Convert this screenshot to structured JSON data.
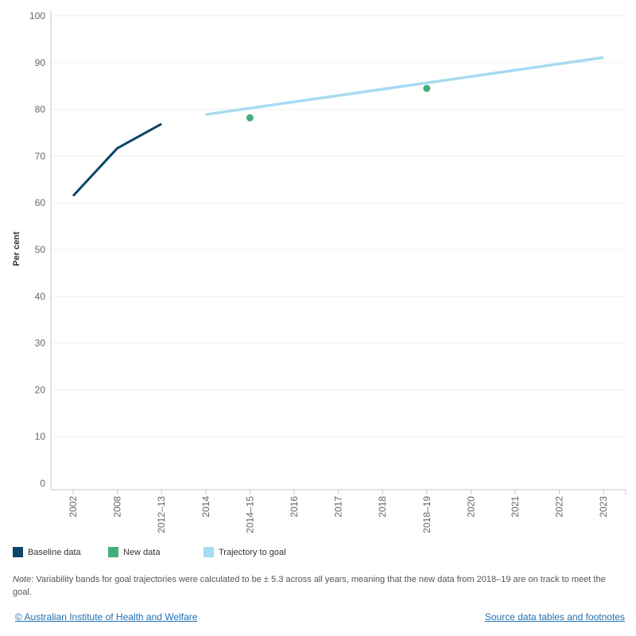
{
  "chart_data": {
    "type": "line",
    "ylabel": "Per cent",
    "xlabel": "",
    "ylim": [
      0,
      100
    ],
    "y_ticks": [
      0,
      10,
      20,
      30,
      40,
      50,
      60,
      70,
      80,
      90,
      100
    ],
    "categories": [
      "2002",
      "2008",
      "2012–13",
      "2014",
      "2014–15",
      "2016",
      "2017",
      "2018",
      "2018–19",
      "2020",
      "2021",
      "2022",
      "2023"
    ],
    "grid": true,
    "legend_position": "bottom",
    "series": [
      {
        "name": "Baseline data",
        "type": "line",
        "color": "#0b4567",
        "x": [
          "2002",
          "2008",
          "2012–13"
        ],
        "values": [
          61.5,
          71.7,
          76.9
        ]
      },
      {
        "name": "New data",
        "type": "scatter",
        "color": "#44ad79",
        "x": [
          "2014–15",
          "2018–19"
        ],
        "values": [
          78.2,
          84.5
        ]
      },
      {
        "name": "Trajectory to goal",
        "type": "line",
        "color": "#a6dbf2",
        "x": [
          "2014",
          "2023"
        ],
        "values": [
          78.9,
          91.1
        ]
      }
    ]
  },
  "legend": {
    "items": [
      {
        "label": "Baseline data",
        "color": "#0b4567"
      },
      {
        "label": "New data",
        "color": "#44ad79"
      },
      {
        "label": "Trajectory to goal",
        "color": "#a6dbf2"
      }
    ]
  },
  "note": {
    "label": "Note",
    "text": ": Variability bands for goal trajectories were calculated to be ± 5.3 across all years, meaning that the new data from 2018–19 are on track to meet the goal."
  },
  "footer": {
    "copyright": "© Australian Institute of Health and Welfare",
    "source_link": "Source data tables and footnotes"
  }
}
